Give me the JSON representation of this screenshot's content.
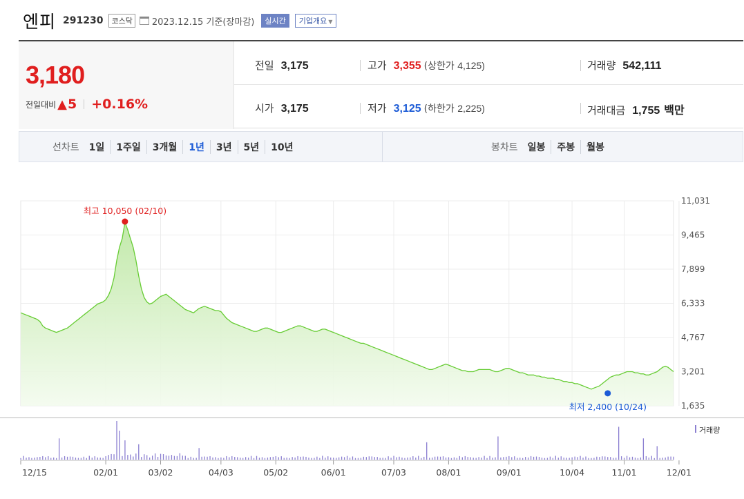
{
  "header": {
    "name": "엔피",
    "code": "291230",
    "market": "코스닥",
    "date_text": "2023.12.15  기준(장마감)",
    "realtime_label": "실시간",
    "company_label": "기업개요"
  },
  "quote": {
    "price": "3,180",
    "change_label": "전일대비",
    "change_value": "5",
    "change_pct": "+0.16%",
    "prev_label": "전일",
    "prev": "3,175",
    "open_label": "시가",
    "open": "3,175",
    "high_label": "고가",
    "high": "3,355",
    "upper_label": "(상한가",
    "upper": "4,125)",
    "low_label": "저가",
    "low": "3,125",
    "lower_label": "(하한가",
    "lower": "2,225)",
    "volume_label": "거래량",
    "volume": "542,111",
    "amount_label": "거래대금",
    "amount": "1,755",
    "amount_unit": "백만"
  },
  "periods": {
    "line_label": "선차트",
    "line_items": [
      "1일",
      "1주일",
      "3개월",
      "1년",
      "3년",
      "5년",
      "10년"
    ],
    "selected": "1년",
    "candle_label": "봉차트",
    "candle_items": [
      "일봉",
      "주봉",
      "월봉"
    ]
  },
  "colors": {
    "up": "#e01f1f",
    "down": "#1c5bd6",
    "line": "#66cc33",
    "volume": "#8b7fd1"
  },
  "chart_data": {
    "type": "area",
    "y_ticks": [
      "11,031",
      "9,465",
      "7,899",
      "6,333",
      "4,767",
      "3,201",
      "1,635"
    ],
    "ylim": [
      1635,
      11031
    ],
    "x_ticks": [
      "12/15",
      "02/01",
      "03/02",
      "04/03",
      "05/02",
      "06/01",
      "07/03",
      "08/01",
      "09/01",
      "10/04",
      "11/01",
      "12/01"
    ],
    "x_tick_index": [
      0,
      31,
      51,
      73,
      93,
      114,
      136,
      156,
      178,
      201,
      220,
      240
    ],
    "annotation_high": "최고 10,050 (02/10)",
    "annotation_high_index": 38,
    "annotation_high_value": 10050,
    "annotation_low": "최저 2,400 (10/24)",
    "annotation_low_index": 214,
    "annotation_low_value": 2400,
    "volume_label": "거래량",
    "series": [
      {
        "values": [
          5900,
          5850,
          5800,
          5750,
          5700,
          5650,
          5600,
          5500,
          5300,
          5200,
          5150,
          5100,
          5050,
          5000,
          5050,
          5100,
          5150,
          5200,
          5300,
          5400,
          5500,
          5600,
          5700,
          5800,
          5900,
          6000,
          6100,
          6200,
          6300,
          6350,
          6400,
          6500,
          6700,
          7000,
          7500,
          8300,
          8900,
          9300,
          10050,
          9700,
          9300,
          8900,
          8300,
          7600,
          7000,
          6600,
          6400,
          6300,
          6350,
          6450,
          6550,
          6650,
          6700,
          6750,
          6650,
          6550,
          6450,
          6350,
          6250,
          6150,
          6050,
          6000,
          5950,
          5900,
          6000,
          6100,
          6150,
          6200,
          6150,
          6100,
          6050,
          6000,
          6000,
          5950,
          5800,
          5650,
          5550,
          5450,
          5400,
          5350,
          5300,
          5250,
          5200,
          5150,
          5100,
          5050,
          5050,
          5100,
          5150,
          5200,
          5200,
          5150,
          5100,
          5050,
          5000,
          5000,
          5050,
          5100,
          5150,
          5200,
          5250,
          5300,
          5300,
          5250,
          5200,
          5150,
          5100,
          5050,
          5050,
          5100,
          5150,
          5150,
          5100,
          5050,
          5000,
          4950,
          4900,
          4850,
          4800,
          4750,
          4700,
          4650,
          4600,
          4550,
          4500,
          4500,
          4450,
          4400,
          4350,
          4300,
          4250,
          4200,
          4150,
          4100,
          4050,
          4000,
          3950,
          3900,
          3850,
          3800,
          3750,
          3700,
          3650,
          3600,
          3550,
          3500,
          3450,
          3400,
          3350,
          3300,
          3300,
          3350,
          3400,
          3450,
          3500,
          3550,
          3500,
          3450,
          3400,
          3350,
          3300,
          3250,
          3250,
          3200,
          3200,
          3200,
          3250,
          3300,
          3300,
          3300,
          3300,
          3300,
          3250,
          3200,
          3200,
          3250,
          3300,
          3350,
          3350,
          3300,
          3250,
          3200,
          3150,
          3150,
          3100,
          3050,
          3050,
          3050,
          3000,
          3000,
          2950,
          2950,
          2900,
          2900,
          2900,
          2850,
          2850,
          2800,
          2750,
          2750,
          2700,
          2700,
          2650,
          2650,
          2600,
          2550,
          2500,
          2450,
          2400,
          2450,
          2500,
          2550,
          2650,
          2750,
          2850,
          2950,
          3000,
          3050,
          3050,
          3100,
          3150,
          3200,
          3200,
          3200,
          3150,
          3150,
          3100,
          3100,
          3050,
          3050,
          3100,
          3150,
          3200,
          3300,
          3400,
          3450,
          3400,
          3300,
          3200
        ]
      }
    ],
    "volume_spikes": [
      [
        14,
        0.55
      ],
      [
        35,
        1.0
      ],
      [
        36,
        0.75
      ],
      [
        38,
        0.5
      ],
      [
        43,
        0.4
      ],
      [
        65,
        0.3
      ],
      [
        148,
        0.45
      ],
      [
        174,
        0.6
      ],
      [
        218,
        0.85
      ],
      [
        227,
        0.55
      ],
      [
        232,
        0.35
      ]
    ]
  }
}
